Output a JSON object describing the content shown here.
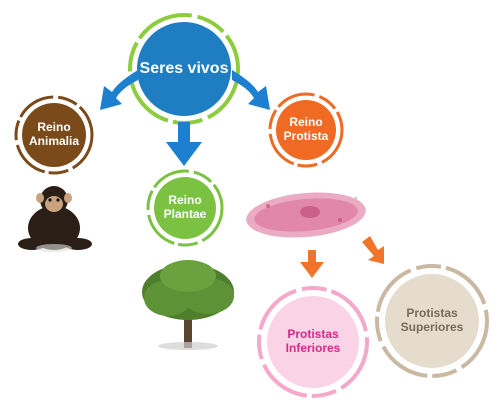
{
  "nodes": {
    "seres_vivos": "Seres vivos",
    "reino_animalia": [
      "Reino",
      "Animalia"
    ],
    "reino_plantae": [
      "Reino",
      "Plantae"
    ],
    "reino_protista": [
      "Reino",
      "Protista"
    ],
    "protistas_inferiores": [
      "Protistas",
      "Inferiores"
    ],
    "protistas_superiores": [
      "Protistas",
      "Superiores"
    ]
  },
  "colors": {
    "seres_vivos": "#1f7ec1",
    "seres_vivos_ring": "#8ccc3e",
    "animalia": "#7b4a1b",
    "plantae": "#7bc242",
    "protista": "#f06a24",
    "inferiores_bg": "#fbd3e6",
    "inferiores_text": "#d62a87",
    "superiores_bg": "#e6dccd",
    "superiores_text": "#7a6a5c",
    "arrow_blue": "#1d7fd0",
    "arrow_orange": "#f0742a"
  },
  "illustrations": [
    "chimpanzee",
    "tree",
    "paramecium"
  ]
}
